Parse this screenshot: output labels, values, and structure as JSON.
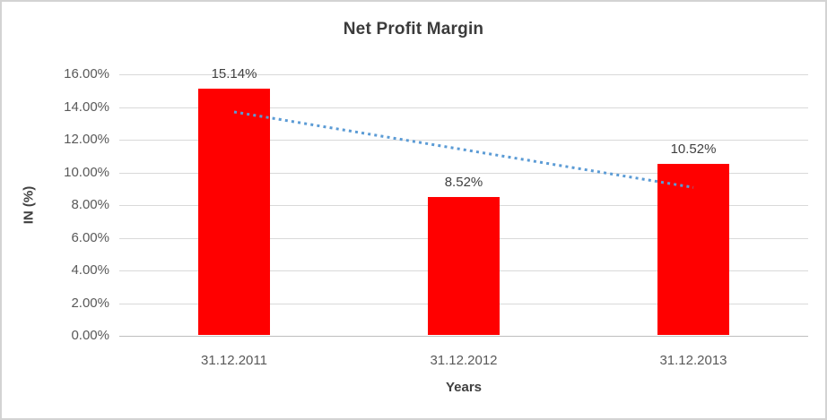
{
  "chart_data": {
    "type": "bar",
    "title": "Net Profit Margin",
    "categories": [
      "31.12.2011",
      "31.12.2012",
      "31.12.2013"
    ],
    "values": [
      15.14,
      8.52,
      10.52
    ],
    "data_labels": [
      "15.14%",
      "8.52%",
      "10.52%"
    ],
    "xlabel": "Years",
    "ylabel": "IN (%)",
    "ylim": [
      0,
      16
    ],
    "ytick_step": 2,
    "ytick_labels": [
      "16.00%",
      "14.00%",
      "12.00%",
      "10.00%",
      "8.00%",
      "6.00%",
      "4.00%",
      "2.00%",
      "0.00%"
    ],
    "grid": true,
    "legend": "none",
    "bar_color": "#ff0000",
    "gridline_color": "#d9d9d9",
    "axis_line_color": "#bfbfbf",
    "trendline": {
      "type": "linear",
      "start_value": 13.7,
      "end_value": 9.08,
      "color": "#5b9bd5",
      "style": "dotted"
    }
  }
}
